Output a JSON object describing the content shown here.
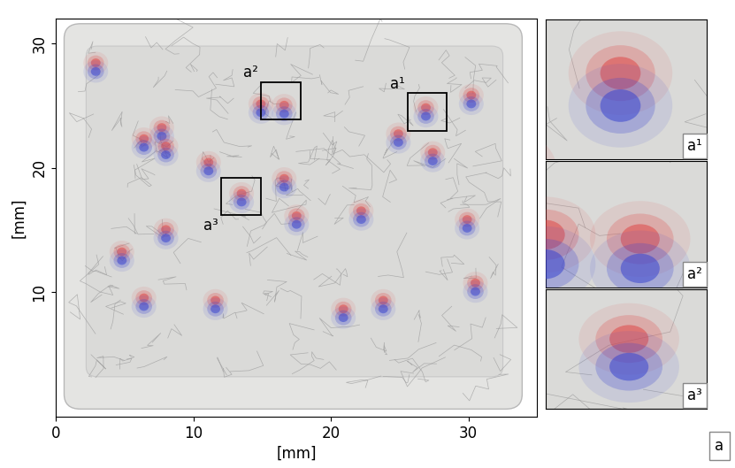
{
  "chart_data": {
    "type": "dipole_map",
    "xlabel": "[mm]",
    "ylabel": "[mm]",
    "xlim": [
      0,
      35
    ],
    "ylim": [
      0,
      32
    ],
    "xticks": [
      0,
      10,
      20,
      30
    ],
    "yticks": [
      10,
      20,
      30
    ],
    "panel_label": "a",
    "dipoles": [
      {
        "x": 2.9,
        "y": 28.1
      },
      {
        "x": 7.7,
        "y": 22.9
      },
      {
        "x": 8.0,
        "y": 21.4
      },
      {
        "x": 6.4,
        "y": 22.0
      },
      {
        "x": 11.1,
        "y": 20.1
      },
      {
        "x": 13.5,
        "y": 17.6
      },
      {
        "x": 16.6,
        "y": 18.8
      },
      {
        "x": 17.5,
        "y": 15.8
      },
      {
        "x": 16.6,
        "y": 24.7
      },
      {
        "x": 14.9,
        "y": 24.8
      },
      {
        "x": 26.9,
        "y": 24.5
      },
      {
        "x": 24.9,
        "y": 22.4
      },
      {
        "x": 27.4,
        "y": 20.9
      },
      {
        "x": 23.8,
        "y": 9.0
      },
      {
        "x": 29.9,
        "y": 15.5
      },
      {
        "x": 30.5,
        "y": 10.4
      },
      {
        "x": 6.4,
        "y": 9.2
      },
      {
        "x": 11.6,
        "y": 9.0
      },
      {
        "x": 20.9,
        "y": 8.3
      },
      {
        "x": 4.8,
        "y": 12.9
      },
      {
        "x": 30.2,
        "y": 25.5
      },
      {
        "x": 8.0,
        "y": 14.7
      },
      {
        "x": 22.2,
        "y": 16.2
      }
    ],
    "positive_color": "#e04848",
    "negative_color": "#3a46d0",
    "insets": [
      {
        "label": "a¹",
        "xlim": [
          25.6,
          28.4
        ],
        "ylim": [
          23.0,
          26.0
        ]
      },
      {
        "label": "a²",
        "xlim": [
          14.9,
          17.8
        ],
        "ylim": [
          23.9,
          26.9
        ]
      },
      {
        "label": "a³",
        "xlim": [
          12.0,
          14.9
        ],
        "ylim": [
          16.2,
          19.2
        ]
      }
    ]
  }
}
